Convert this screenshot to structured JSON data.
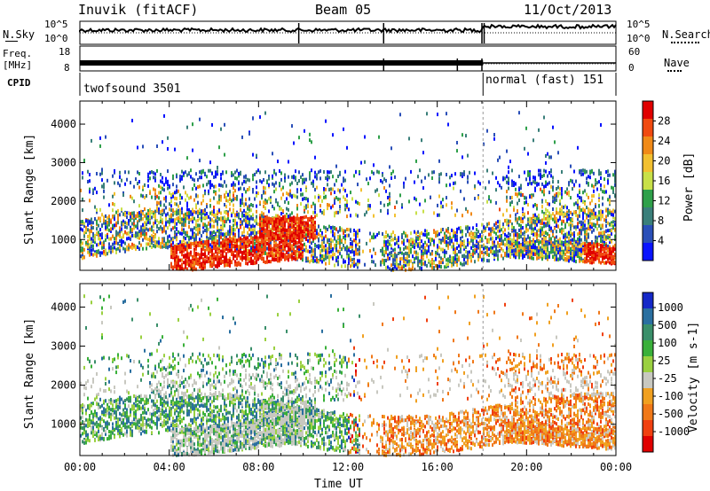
{
  "header": {
    "station": "Inuvik (fitACF)",
    "beam": "Beam 05",
    "date": "11/Oct/2013"
  },
  "strip_labels": {
    "nsky": "N.Sky",
    "nsky_ticks": [
      "10^5",
      "10^0"
    ],
    "nsearch": "N.Search",
    "nsearch_ticks": [
      "10^5",
      "10^0"
    ],
    "freq_line1": "Freq.",
    "freq_line2": "[MHz]",
    "freq_ticks": [
      "18",
      "8"
    ],
    "nave": "Nave",
    "nave_ticks": [
      "60",
      "0"
    ],
    "cpid": "CPID",
    "cpid_mode1": "twofsound 3501",
    "cpid_mode2": "normal (fast) 151"
  },
  "chart_data": [
    {
      "type": "heatmap",
      "title": "",
      "xlabel": "Time UT",
      "ylabel": "Slant Range [km]",
      "x_ticks": [
        "00:00",
        "04:00",
        "08:00",
        "12:00",
        "16:00",
        "20:00",
        "00:00"
      ],
      "x_range_hours": [
        0,
        24
      ],
      "y_ticks": [
        1000,
        2000,
        3000,
        4000
      ],
      "y_range_km": [
        200,
        4600
      ],
      "colorbar_label": "Power [dB]",
      "colorbar_ticks": [
        "4",
        "8",
        "12",
        "16",
        "20",
        "24",
        "28"
      ],
      "colorbar_colors": [
        "#0a14ff",
        "#2a4fb8",
        "#3a7f7a",
        "#2fa04a",
        "#c8e048",
        "#f2c030",
        "#f08a18",
        "#f04a10",
        "#e00000"
      ]
    },
    {
      "type": "heatmap",
      "title": "",
      "xlabel": "Time UT",
      "ylabel": "Slant Range [km]",
      "x_ticks": [
        "00:00",
        "04:00",
        "08:00",
        "12:00",
        "16:00",
        "20:00",
        "00:00"
      ],
      "x_range_hours": [
        0,
        24
      ],
      "y_ticks": [
        1000,
        2000,
        3000,
        4000
      ],
      "y_range_km": [
        200,
        4600
      ],
      "colorbar_label": "Velocity [m s-1]",
      "colorbar_ticks": [
        "1000",
        "500",
        "100",
        "25",
        "-25",
        "-100",
        "-500",
        "-1000"
      ],
      "colorbar_colors": [
        "#1428c8",
        "#2a6fa0",
        "#3a8f6a",
        "#3ab03a",
        "#9ad040",
        "#c8c8c0",
        "#f0a020",
        "#f07818",
        "#f04010",
        "#e00000"
      ]
    }
  ],
  "mode_change_hour": 18.05
}
